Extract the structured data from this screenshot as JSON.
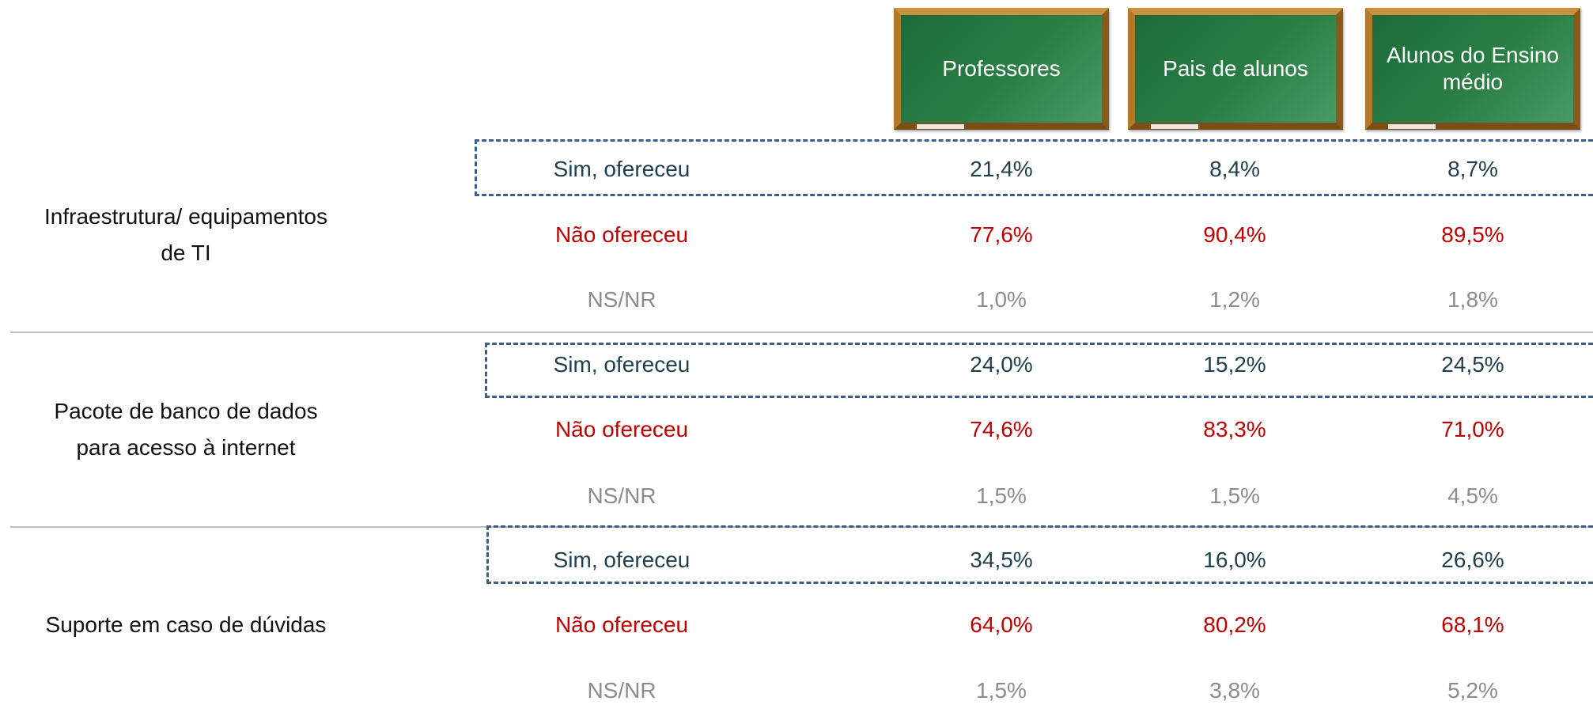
{
  "header": {
    "columns": [
      "Professores",
      "Pais de alunos",
      "Alunos do Ensino médio"
    ]
  },
  "table": {
    "groups": [
      {
        "label": [
          "Infraestrutura/ equipamentos",
          "de TI"
        ],
        "rows": [
          [
            "Sim, ofereceu",
            "21,4%",
            "8,4%",
            "8,7%"
          ],
          [
            "Não ofereceu",
            "77,6%",
            "90,4%",
            "89,5%"
          ],
          [
            "NS/NR",
            "1,0%",
            "1,2%",
            "1,8%"
          ]
        ]
      },
      {
        "label": [
          "Pacote de banco de dados",
          "para acesso à internet"
        ],
        "rows": [
          [
            "Sim, ofereceu",
            "24,0%",
            "15,2%",
            "24,5%"
          ],
          [
            "Não ofereceu",
            "74,6%",
            "83,3%",
            "71,0%"
          ],
          [
            "NS/NR",
            "1,5%",
            "1,5%",
            "4,5%"
          ]
        ]
      },
      {
        "label": [
          "Suporte em caso de dúvidas"
        ],
        "rows": [
          [
            "Sim, ofereceu",
            "34,5%",
            "16,0%",
            "26,6%"
          ],
          [
            "Não ofereceu",
            "64,0%",
            "80,2%",
            "68,1%"
          ],
          [
            "NS/NR",
            "1,5%",
            "3,8%",
            "5,2%"
          ]
        ]
      }
    ]
  }
}
